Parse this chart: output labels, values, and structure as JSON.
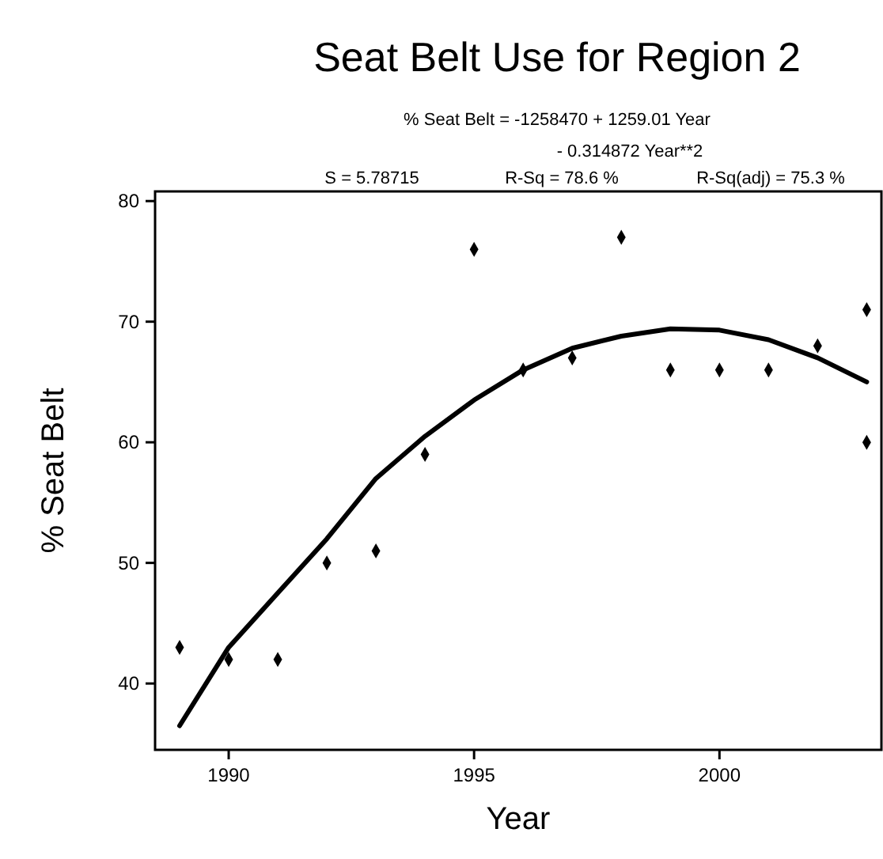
{
  "chart_data": {
    "type": "scatter",
    "title": "Seat Belt Use for Region 2",
    "subtitle": "% Seat Belt = -1258470 + 1259.01 Year",
    "annotations": [
      "- 0.314872 Year**2",
      "S = 5.78715",
      "R-Sq = 78.6 %",
      "R-Sq(adj) = 75.3 %"
    ],
    "xlabel": "Year",
    "ylabel": "% Seat Belt",
    "series": [
      {
        "color": "#000000",
        "marker": "diamond",
        "x": [
          1989,
          1990,
          1991,
          1992,
          1993,
          1994,
          1995,
          1996,
          1997,
          1998,
          1999,
          2000,
          2001,
          2002,
          2003,
          2003
        ],
        "values": [
          43,
          42,
          42,
          50,
          51,
          59,
          76,
          66,
          67,
          77,
          66,
          66,
          66,
          68,
          71,
          60
        ]
      },
      {
        "type": "line",
        "color": "#000000",
        "marker": "none",
        "line_style": "solid",
        "x": [
          1989,
          1990,
          1991,
          1992,
          1993,
          1994,
          1995,
          1996,
          1997,
          1998,
          1999,
          2000,
          2001,
          2002,
          2003
        ],
        "values": [
          36.5,
          43,
          47.5,
          52,
          57,
          60.5,
          63.5,
          66,
          67.8,
          68.8,
          69.4,
          69.3,
          68.5,
          67,
          65
        ]
      }
    ],
    "xlim": [
      1988.5,
      2003.3
    ],
    "xticks": [
      1990,
      1995,
      2000
    ],
    "ylim": [
      34.5,
      80.8
    ],
    "yticks": [
      40,
      50,
      60,
      70,
      80
    ],
    "grid": false
  }
}
